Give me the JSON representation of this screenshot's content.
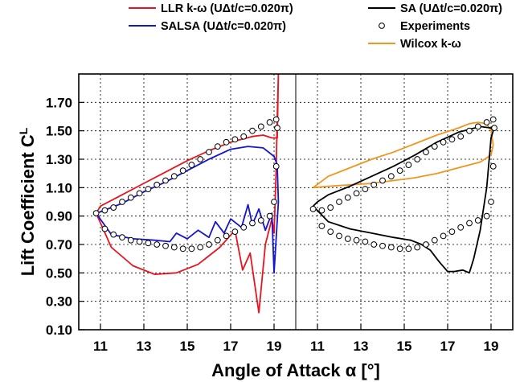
{
  "chart_data": {
    "type": "line",
    "title": "",
    "xlabel": "Angle of Attack α [°]",
    "ylabel": "Lift Coefficient C",
    "ylabel_sub": "L",
    "ylim": [
      0.1,
      1.9
    ],
    "y_ticks": [
      "0.10",
      "0.30",
      "0.50",
      "0.70",
      "0.90",
      "1.10",
      "1.30",
      "1.50",
      "1.70"
    ],
    "x_tick_labels": [
      "11",
      "13",
      "15",
      "17",
      "19",
      "11",
      "13",
      "15",
      "17",
      "19"
    ],
    "grid": true,
    "legend_position": "top",
    "colors": {
      "llr": "#e8141e",
      "salsa": "#1414d2",
      "sa": "#000000",
      "wilcox": "#f0961e",
      "experiments": "#000000"
    },
    "legend": [
      {
        "key": "llr",
        "label": "LLR k-ω (UΔt/c=0.020π)"
      },
      {
        "key": "salsa",
        "label": "SALSA   (UΔt/c=0.020π)"
      },
      {
        "key": "sa",
        "label": "SA  (UΔt/c=0.020π)"
      },
      {
        "key": "experiments",
        "label": "Experiments"
      },
      {
        "key": "wilcox",
        "label": "Wilcox k-ω"
      }
    ],
    "panels": [
      {
        "xlim": [
          10.0,
          20.0
        ],
        "series": [
          {
            "name": "LLR k-ω (UΔt/c=0.020π)",
            "key": "llr",
            "x": [
              10.8,
              11.5,
              12.5,
              13.5,
              14.5,
              15.5,
              16.5,
              17.2,
              17.55,
              17.9,
              18.3,
              18.6,
              18.9,
              19.0,
              19.05,
              19.1,
              19.15,
              19.2,
              19.15,
              18.9,
              18.5,
              18.0,
              17.0,
              16.0,
              15.0,
              14.0,
              13.0,
              12.0,
              11.0,
              10.8
            ],
            "y": [
              0.92,
              0.68,
              0.55,
              0.49,
              0.5,
              0.56,
              0.68,
              0.8,
              0.52,
              0.64,
              0.22,
              0.7,
              0.88,
              0.78,
              1.0,
              1.25,
              1.6,
              1.9,
              1.45,
              1.45,
              1.47,
              1.46,
              1.42,
              1.36,
              1.29,
              1.21,
              1.13,
              1.05,
              0.97,
              0.92
            ]
          },
          {
            "name": "SALSA   (UΔt/c=0.020π)",
            "key": "salsa",
            "x": [
              10.8,
              11.5,
              12.5,
              13.5,
              14.2,
              14.5,
              15.0,
              15.5,
              16.0,
              16.3,
              16.7,
              17.0,
              17.5,
              17.8,
              18.0,
              18.3,
              18.6,
              18.9,
              19.0,
              19.1,
              19.2,
              19.15,
              19.1,
              19.0,
              18.5,
              17.8,
              17.0,
              16.0,
              15.0,
              14.0,
              13.0,
              12.0,
              11.0,
              10.8
            ],
            "y": [
              0.92,
              0.77,
              0.74,
              0.73,
              0.72,
              0.78,
              0.74,
              0.8,
              0.75,
              0.86,
              0.78,
              0.88,
              0.82,
              0.98,
              0.84,
              0.95,
              0.8,
              0.92,
              0.5,
              0.75,
              1.0,
              1.25,
              1.28,
              1.32,
              1.38,
              1.39,
              1.37,
              1.3,
              1.22,
              1.14,
              1.07,
              0.99,
              0.93,
              0.92
            ]
          },
          {
            "name": "Experiments",
            "key": "experiments",
            "marker": "circle",
            "x": [
              10.8,
              11.2,
              11.6,
              12.0,
              12.4,
              12.8,
              13.2,
              13.6,
              14.0,
              14.4,
              14.8,
              15.2,
              15.6,
              16.0,
              16.4,
              16.8,
              17.2,
              17.6,
              18.0,
              18.4,
              18.8,
              19.0,
              19.1,
              19.15,
              19.1,
              18.8,
              18.4,
              18.0,
              17.6,
              17.2,
              16.8,
              16.4,
              16.0,
              15.6,
              15.2,
              14.8,
              14.4,
              14.0,
              13.6,
              13.2,
              12.8,
              12.4,
              12.0,
              11.6,
              11.2
            ],
            "y": [
              0.92,
              0.81,
              0.77,
              0.75,
              0.73,
              0.72,
              0.71,
              0.7,
              0.69,
              0.68,
              0.67,
              0.67,
              0.68,
              0.7,
              0.73,
              0.76,
              0.79,
              0.82,
              0.85,
              0.87,
              0.9,
              1.0,
              1.25,
              1.52,
              1.58,
              1.56,
              1.53,
              1.5,
              1.46,
              1.44,
              1.42,
              1.39,
              1.35,
              1.3,
              1.26,
              1.22,
              1.18,
              1.15,
              1.12,
              1.09,
              1.06,
              1.03,
              1.0,
              0.96,
              0.94
            ]
          }
        ]
      },
      {
        "xlim": [
          10.0,
          20.0
        ],
        "series": [
          {
            "name": "Wilcox k-ω",
            "key": "wilcox",
            "x": [
              10.8,
              11.5,
              12.5,
              13.5,
              14.5,
              15.5,
              16.5,
              17.5,
              18.0,
              18.4,
              18.8,
              19.0,
              19.1,
              19.0,
              18.5,
              17.5,
              16.5,
              15.5,
              14.5,
              13.5,
              12.5,
              11.5,
              10.8
            ],
            "y": [
              1.1,
              1.18,
              1.24,
              1.3,
              1.35,
              1.41,
              1.47,
              1.52,
              1.55,
              1.56,
              1.55,
              1.5,
              1.4,
              1.33,
              1.28,
              1.24,
              1.2,
              1.17,
              1.15,
              1.13,
              1.12,
              1.11,
              1.1
            ]
          },
          {
            "name": "SA  (UΔt/c=0.020π)",
            "key": "sa",
            "x": [
              10.8,
              11.5,
              12.5,
              13.5,
              14.5,
              15.3,
              15.8,
              16.2,
              16.6,
              17.0,
              17.3,
              17.7,
              18.0,
              18.2,
              18.5,
              18.8,
              19.0,
              19.1,
              19.0,
              18.5,
              17.5,
              16.5,
              15.5,
              14.5,
              13.5,
              12.5,
              11.5,
              11.0,
              10.8
            ],
            "y": [
              0.97,
              0.86,
              0.81,
              0.78,
              0.75,
              0.73,
              0.7,
              0.66,
              0.58,
              0.51,
              0.51,
              0.52,
              0.5,
              0.6,
              0.8,
              1.1,
              1.45,
              1.5,
              1.52,
              1.53,
              1.49,
              1.42,
              1.33,
              1.25,
              1.18,
              1.11,
              1.05,
              1.0,
              0.97
            ]
          },
          {
            "name": "Experiments",
            "key": "experiments",
            "marker": "circle",
            "x": [
              10.8,
              11.2,
              11.6,
              12.0,
              12.4,
              12.8,
              13.2,
              13.6,
              14.0,
              14.4,
              14.8,
              15.2,
              15.6,
              16.0,
              16.4,
              16.8,
              17.2,
              17.6,
              18.0,
              18.4,
              18.8,
              19.0,
              19.1,
              19.15,
              19.1,
              18.8,
              18.4,
              18.0,
              17.6,
              17.2,
              16.8,
              16.4,
              16.0,
              15.6,
              15.2,
              14.8,
              14.4,
              14.0,
              13.6,
              13.2,
              12.8,
              12.4,
              12.0,
              11.6,
              11.2
            ],
            "y": [
              0.95,
              0.83,
              0.79,
              0.76,
              0.74,
              0.73,
              0.72,
              0.7,
              0.69,
              0.68,
              0.67,
              0.67,
              0.68,
              0.7,
              0.73,
              0.76,
              0.79,
              0.82,
              0.85,
              0.87,
              0.9,
              1.0,
              1.25,
              1.52,
              1.58,
              1.56,
              1.53,
              1.5,
              1.46,
              1.44,
              1.42,
              1.39,
              1.35,
              1.3,
              1.26,
              1.22,
              1.18,
              1.15,
              1.12,
              1.09,
              1.06,
              1.03,
              1.0,
              0.96,
              0.94
            ]
          }
        ]
      }
    ]
  }
}
